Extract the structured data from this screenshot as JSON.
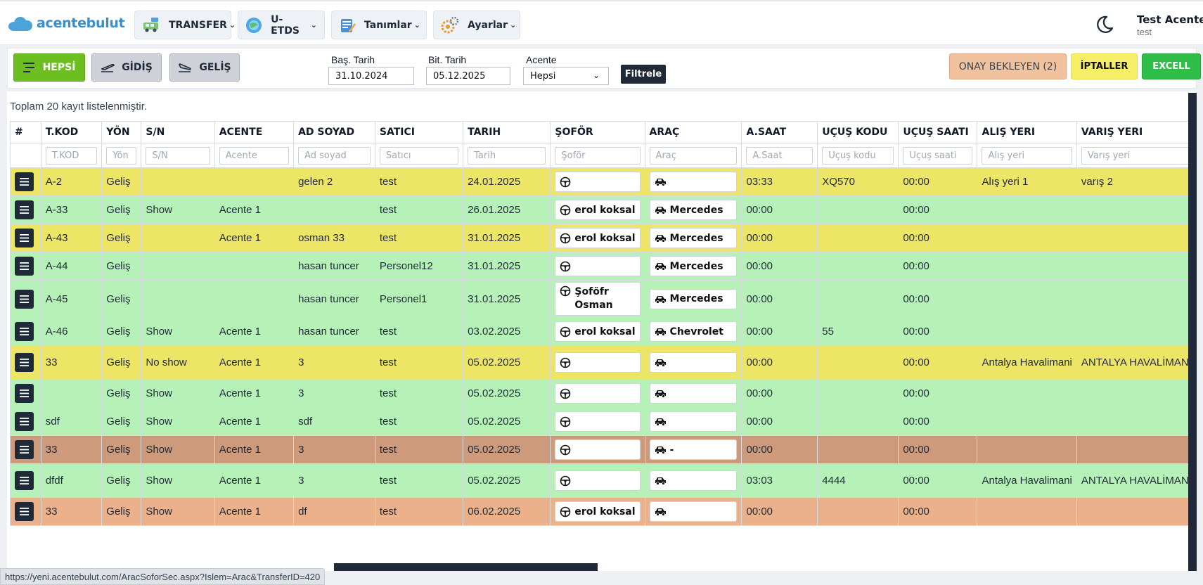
{
  "brand": {
    "name": "acentebulut"
  },
  "nav": [
    {
      "label": "TRANSFER",
      "icon": "van-icon"
    },
    {
      "label": "U-ETDS",
      "icon": "globe-icon"
    },
    {
      "label": "Tanımlar",
      "icon": "notepad-icon"
    },
    {
      "label": "Ayarlar",
      "icon": "gears-icon"
    }
  ],
  "user": {
    "name": "Test Acente",
    "sub": "test"
  },
  "filters": {
    "all_label": "HEPSİ",
    "departure_label": "GİDİŞ",
    "arrival_label": "GELİŞ",
    "start_label": "Baş. Tarih",
    "start_value": "31.10.2024",
    "end_label": "Bit. Tarih",
    "end_value": "05.12.2025",
    "agency_label": "Acente",
    "agency_value": "Hepsi",
    "filter_button": "Filtrele",
    "pending_button": "ONAY BEKLEYEN (2)",
    "cancel_button": "İPTALLER",
    "excel_button": "EXCELL"
  },
  "colors": {
    "green_button": "#6cbf1f",
    "pending_bg": "#f1c29e",
    "cancel_bg": "#f7ee68",
    "excel_bg": "#2fbe48",
    "row_yellow": "#ede566",
    "row_green": "#b6f2b8",
    "row_brown": "#cd9a7c",
    "row_orange": "#eab18b"
  },
  "summary": "Toplam 20 kayıt listelenmiştir.",
  "table": {
    "headers": [
      "#",
      "T.KOD",
      "YÖN",
      "S/N",
      "ACENTE",
      "AD SOYAD",
      "SATICI",
      "TARIH",
      "ŞOFÖR",
      "ARAÇ",
      "A.SAAT",
      "UÇUŞ KODU",
      "UÇUŞ SAATI",
      "ALIŞ YERI",
      "VARIŞ YERI"
    ],
    "placeholders": [
      "",
      "T.KOD",
      "Yön",
      "S/N",
      "Acente",
      "Ad soyad",
      "Satıcı",
      "Tarih",
      "Şoför",
      "Araç",
      "A.Saat",
      "Uçuş kodu",
      "Uçuş saati",
      "Alış yeri",
      "Varış yeri"
    ],
    "rows": [
      {
        "color": "yellow",
        "tkod": "A-2",
        "yon": "Geliş",
        "sn": "",
        "acente": "",
        "ad": "gelen 2",
        "satici": "test",
        "tarih": "24.01.2025",
        "sofor": "",
        "arac": "",
        "saat": "03:33",
        "ucus_kodu": "XQ570",
        "ucus_saati": "00:00",
        "alis": "Alış yeri 1",
        "varis": "varış 2"
      },
      {
        "color": "green",
        "tkod": "A-33",
        "yon": "Geliş",
        "sn": "Show",
        "acente": "Acente 1",
        "ad": "",
        "satici": "test",
        "tarih": "26.01.2025",
        "sofor": "erol koksal",
        "arac": "Mercedes",
        "saat": "00:00",
        "ucus_kodu": "",
        "ucus_saati": "00:00",
        "alis": "",
        "varis": ""
      },
      {
        "color": "yellow",
        "tkod": "A-43",
        "yon": "Geliş",
        "sn": "",
        "acente": "Acente 1",
        "ad": "osman 33",
        "satici": "test",
        "tarih": "31.01.2025",
        "sofor": "erol koksal",
        "arac": "Mercedes",
        "saat": "00:00",
        "ucus_kodu": "",
        "ucus_saati": "00:00",
        "alis": "",
        "varis": ""
      },
      {
        "color": "green",
        "tkod": "A-44",
        "yon": "Geliş",
        "sn": "",
        "acente": "",
        "ad": "hasan tuncer",
        "satici": "Personel12",
        "tarih": "31.01.2025",
        "sofor": "",
        "arac": "Mercedes",
        "saat": "00:00",
        "ucus_kodu": "",
        "ucus_saati": "00:00",
        "alis": "",
        "varis": ""
      },
      {
        "color": "green",
        "tkod": "A-45",
        "yon": "Geliş",
        "sn": "",
        "acente": "",
        "ad": "hasan tuncer",
        "satici": "Personel1",
        "tarih": "31.01.2025",
        "sofor": "Şoföfr Osman",
        "arac": "Mercedes",
        "saat": "00:00",
        "ucus_kodu": "",
        "ucus_saati": "00:00",
        "alis": "",
        "varis": ""
      },
      {
        "color": "green",
        "tkod": "A-46",
        "yon": "Geliş",
        "sn": "Show",
        "acente": "Acente 1",
        "ad": "hasan tuncer",
        "satici": "test",
        "tarih": "03.02.2025",
        "sofor": "erol koksal",
        "arac": "Chevrolet",
        "saat": "00:00",
        "ucus_kodu": "55",
        "ucus_saati": "00:00",
        "alis": "",
        "varis": ""
      },
      {
        "color": "yellow",
        "tkod": "33",
        "yon": "Geliş",
        "sn": "No show",
        "acente": "Acente 1",
        "ad": "3",
        "satici": "test",
        "tarih": "05.02.2025",
        "sofor": "",
        "arac": "",
        "saat": "00:00",
        "ucus_kodu": "",
        "ucus_saati": "00:00",
        "alis": "Antalya Havalimani",
        "varis": "ANTALYA HAVALİMANI"
      },
      {
        "color": "green",
        "tkod": "",
        "yon": "Geliş",
        "sn": "Show",
        "acente": "Acente 1",
        "ad": "3",
        "satici": "test",
        "tarih": "05.02.2025",
        "sofor": "",
        "arac": "",
        "saat": "00:00",
        "ucus_kodu": "",
        "ucus_saati": "00:00",
        "alis": "",
        "varis": ""
      },
      {
        "color": "green",
        "tkod": "sdf",
        "yon": "Geliş",
        "sn": "Show",
        "acente": "Acente 1",
        "ad": "sdf",
        "satici": "test",
        "tarih": "05.02.2025",
        "sofor": "",
        "arac": "",
        "saat": "00:00",
        "ucus_kodu": "",
        "ucus_saati": "00:00",
        "alis": "",
        "varis": ""
      },
      {
        "color": "brown",
        "tkod": "33",
        "yon": "Geliş",
        "sn": "Show",
        "acente": "Acente 1",
        "ad": "3",
        "satici": "test",
        "tarih": "05.02.2025",
        "sofor": "",
        "arac": "-",
        "saat": "00:00",
        "ucus_kodu": "",
        "ucus_saati": "00:00",
        "alis": "",
        "varis": ""
      },
      {
        "color": "green",
        "tkod": "dfdf",
        "yon": "Geliş",
        "sn": "Show",
        "acente": "Acente 1",
        "ad": "3",
        "satici": "test",
        "tarih": "05.02.2025",
        "sofor": "",
        "arac": "",
        "saat": "03:03",
        "ucus_kodu": "4444",
        "ucus_saati": "00:00",
        "alis": "Antalya Havalimani",
        "varis": "ANTALYA HAVALİMANI"
      },
      {
        "color": "orange",
        "tkod": "33",
        "yon": "Geliş",
        "sn": "Show",
        "acente": "Acente 1",
        "ad": "df",
        "satici": "test",
        "tarih": "06.02.2025",
        "sofor": "erol koksal",
        "arac": "",
        "saat": "00:00",
        "ucus_kodu": "",
        "ucus_saati": "00:00",
        "alis": "",
        "varis": ""
      }
    ]
  },
  "status_url": "https://yeni.acentebulut.com/AracSoforSec.aspx?Islem=Arac&TransferID=420"
}
